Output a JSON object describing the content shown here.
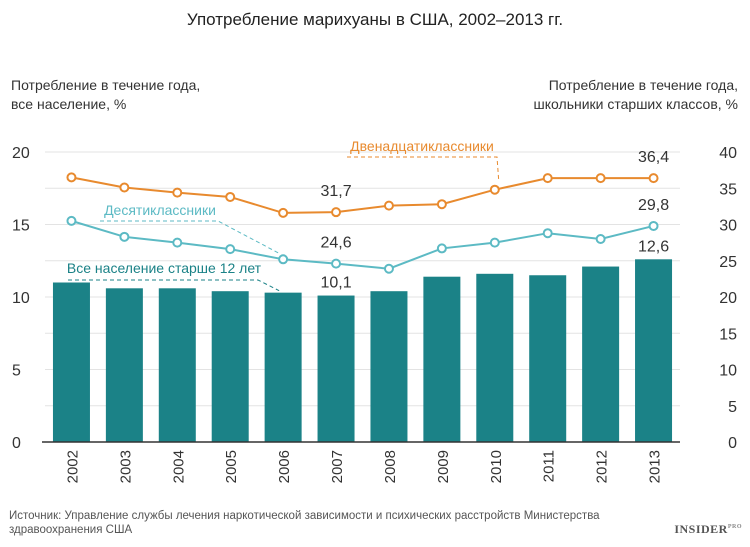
{
  "title": "Употребление марихуаны в США, 2002–2013 гг.",
  "left_axis_title": {
    "line1": "Потребление в течение года,",
    "line2": "все население, %"
  },
  "right_axis_title": {
    "line1": "Потребление в течение года,",
    "line2": "школьники старших классов, %"
  },
  "source": {
    "line1": "Источник: Управление службы лечения наркотической зависимости и психических расстройств Министерства",
    "line2": "здравоохранения США"
  },
  "brand": "INSIDER",
  "brand_suffix": "PRO",
  "colors": {
    "bars": "#1b8287",
    "grade12": "#e88a2e",
    "grade10": "#5cbac4",
    "grid": "#e3e3e3",
    "axis": "#333333"
  },
  "chart_data": {
    "type": "bar",
    "categories": [
      "2002",
      "2003",
      "2004",
      "2005",
      "2006",
      "2007",
      "2008",
      "2009",
      "2010",
      "2011",
      "2012",
      "2013"
    ],
    "left_axis": {
      "ylim": [
        0,
        20
      ],
      "ticks": [
        "0",
        "5",
        "10",
        "15",
        "20"
      ]
    },
    "right_axis": {
      "ylim": [
        0,
        40
      ],
      "ticks": [
        "0",
        "5",
        "10",
        "15",
        "20",
        "25",
        "30",
        "35",
        "40"
      ]
    },
    "grid": true,
    "series": [
      {
        "name": "Все население старше 12 лет",
        "type": "bar",
        "axis": "left",
        "values": [
          11.0,
          10.6,
          10.6,
          10.4,
          10.3,
          10.1,
          10.4,
          11.4,
          11.6,
          11.5,
          12.1,
          12.6
        ]
      },
      {
        "name": "Двенадцатиклассники",
        "type": "line",
        "axis": "right",
        "values": [
          36.5,
          35.1,
          34.4,
          33.8,
          31.6,
          31.7,
          32.6,
          32.8,
          34.8,
          36.4,
          36.4,
          36.4
        ]
      },
      {
        "name": "Десятиклассники",
        "type": "line",
        "axis": "right",
        "values": [
          30.5,
          28.3,
          27.5,
          26.6,
          25.2,
          24.6,
          23.9,
          26.7,
          27.5,
          28.8,
          28.0,
          29.8
        ]
      }
    ],
    "annotations": [
      {
        "series": 1,
        "index": 5,
        "text": "31,7"
      },
      {
        "series": 1,
        "index": 11,
        "text": "36,4"
      },
      {
        "series": 2,
        "index": 5,
        "text": "24,6"
      },
      {
        "series": 2,
        "index": 11,
        "text": "29,8"
      },
      {
        "series": 0,
        "index": 5,
        "text": "10,1"
      },
      {
        "series": 0,
        "index": 11,
        "text": "12,6"
      }
    ]
  }
}
